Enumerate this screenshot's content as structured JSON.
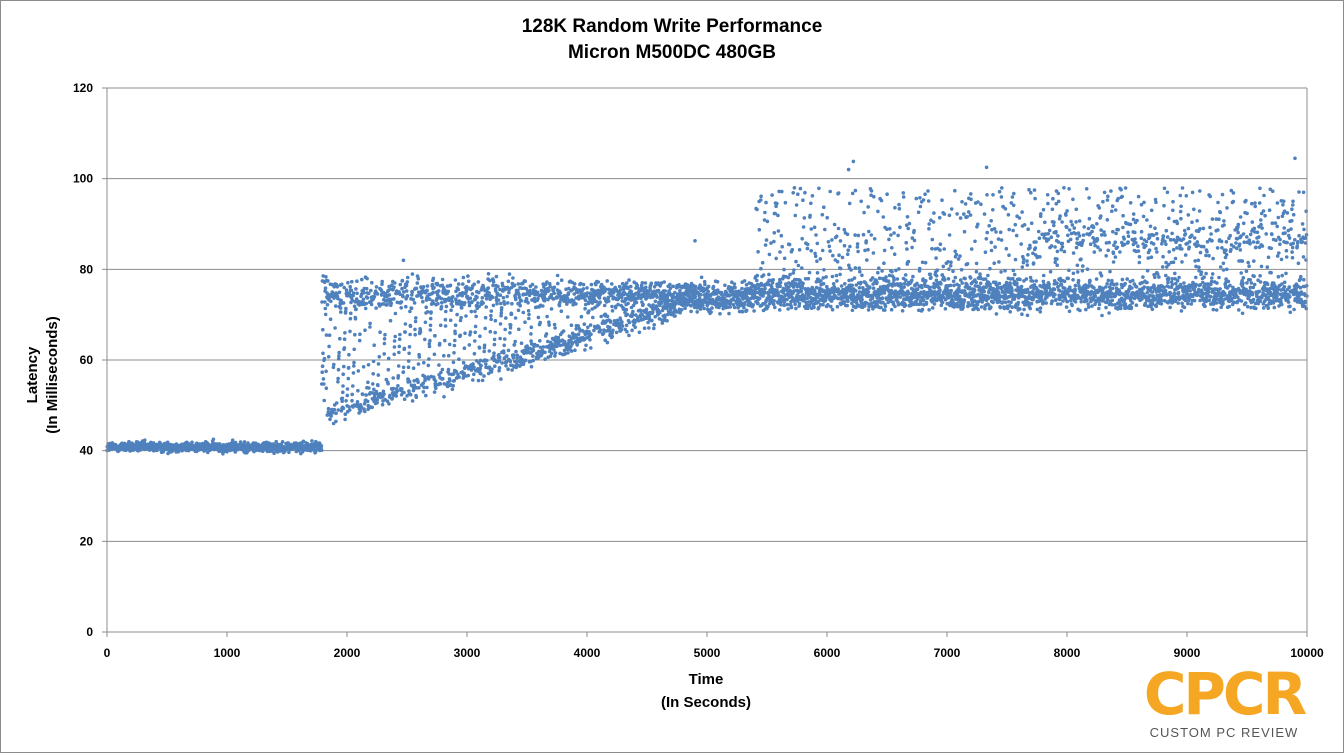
{
  "chart_data": {
    "type": "scatter",
    "title": "128K Random Write Performance",
    "subtitle": "Micron M500DC 480GB",
    "xlabel_line1": "Time",
    "xlabel_line2": "(In Seconds)",
    "ylabel_line1": "Latency",
    "ylabel_line2": "(In Milliseconds)",
    "xlim": [
      0,
      10000
    ],
    "ylim": [
      0,
      120
    ],
    "x_ticks": [
      0,
      1000,
      2000,
      3000,
      4000,
      5000,
      6000,
      7000,
      8000,
      9000,
      10000
    ],
    "y_ticks": [
      0,
      20,
      40,
      60,
      80,
      100,
      120
    ],
    "grid": "horizontal",
    "marker_color": "#4f81bd",
    "series": [
      {
        "segments": [
          {
            "x_start": 0,
            "x_end": 1790,
            "center": 40.8,
            "spread": 1.6
          },
          {
            "x_start": 1790,
            "x_end": 3400,
            "upper_band": [
              74,
              80
            ],
            "lower_band_start": 48,
            "lower_band_end": 60,
            "vertical_streaks": true
          },
          {
            "x_start": 3400,
            "x_end": 5000,
            "upper_band": [
              72,
              78
            ],
            "lower_band_start": 60,
            "lower_band_end": 74
          },
          {
            "x_start": 5000,
            "x_end": 5400,
            "center": 74,
            "spread": 5
          },
          {
            "x_start": 5400,
            "x_end": 10000,
            "dense_band": [
              70,
              79
            ],
            "upper_scatter": [
              79,
              104
            ],
            "secondary_band": [
              84,
              90
            ]
          }
        ],
        "notable_points": [
          [
            6220,
            103.8
          ],
          [
            7330,
            102.5
          ],
          [
            9900,
            104.5
          ],
          [
            4900,
            86.3
          ],
          [
            2470,
            82
          ],
          [
            6180,
            102
          ]
        ]
      }
    ]
  },
  "logo": {
    "mark": "CPCR",
    "text": "CUSTOM PC REVIEW",
    "color": "#f5a623"
  }
}
